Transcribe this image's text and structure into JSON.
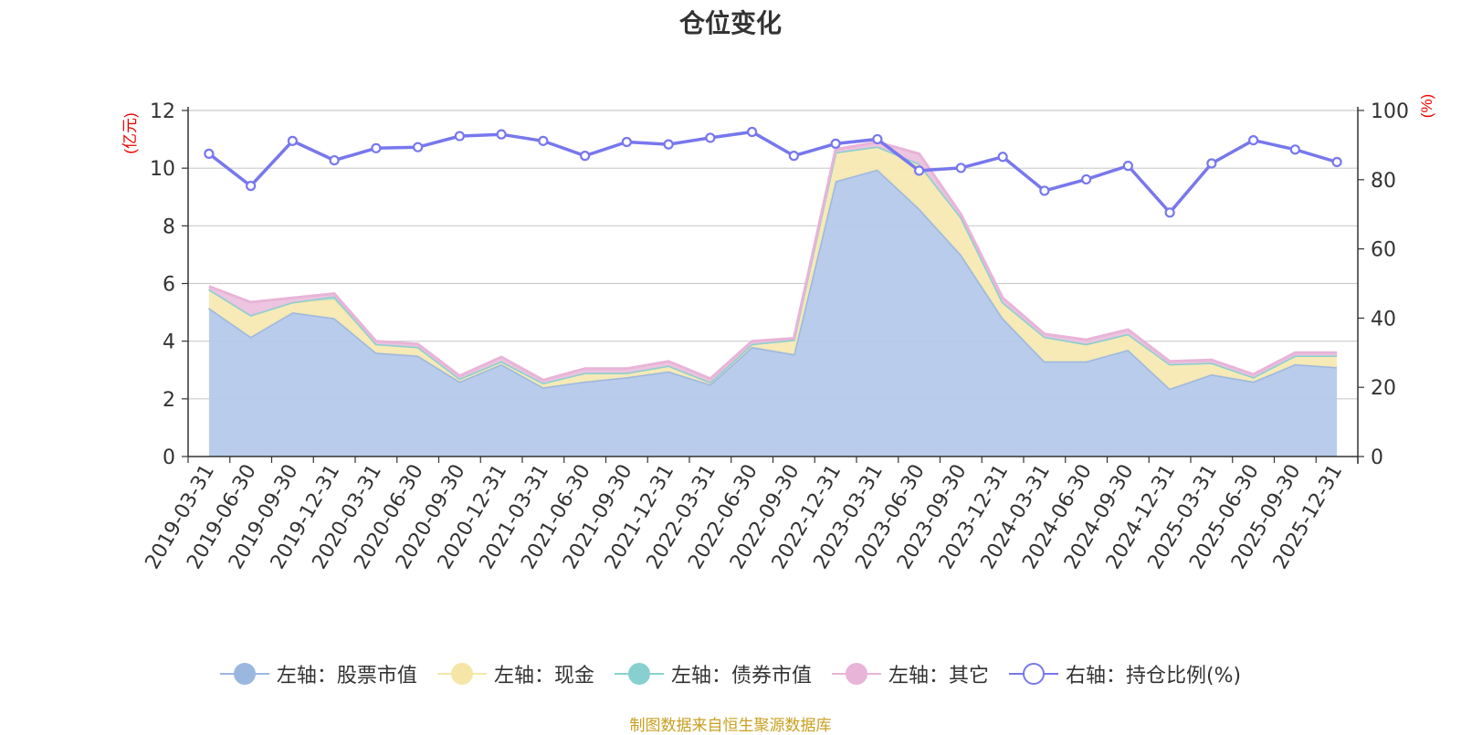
{
  "chart_data": {
    "type": "area",
    "title": "仓位变化",
    "y_left_label": "(亿元)",
    "y_right_label": "(%)",
    "y_left_range": [
      0,
      12
    ],
    "y_left_ticks": [
      0,
      2,
      4,
      6,
      8,
      10,
      12
    ],
    "y_right_range": [
      0,
      100
    ],
    "y_right_ticks": [
      0,
      20,
      40,
      60,
      80,
      100
    ],
    "categories": [
      "2019-03-31",
      "2019-06-30",
      "2019-09-30",
      "2019-12-31",
      "2020-03-31",
      "2020-06-30",
      "2020-09-30",
      "2020-12-31",
      "2021-03-31",
      "2021-06-30",
      "2021-09-30",
      "2021-12-31",
      "2022-03-31",
      "2022-06-30",
      "2022-09-30",
      "2022-12-31",
      "2023-03-31",
      "2023-06-30",
      "2023-09-30",
      "2023-12-31",
      "2024-03-31",
      "2024-06-30",
      "2024-09-30",
      "2024-12-31",
      "2025-03-31",
      "2025-06-30",
      "2025-09-30",
      "2025-12-31"
    ],
    "series": [
      {
        "name": "左轴：股票市值",
        "axis": "left",
        "color": "#9bb7e0",
        "fill": "#b5c9ea",
        "values": [
          5.15,
          4.15,
          5.0,
          4.8,
          3.6,
          3.5,
          2.6,
          3.2,
          2.4,
          2.6,
          2.75,
          2.95,
          2.5,
          3.8,
          3.55,
          9.55,
          9.95,
          8.6,
          7.0,
          4.8,
          3.3,
          3.3,
          3.7,
          2.35,
          2.85,
          2.6,
          3.2,
          3.1
        ]
      },
      {
        "name": "左轴：现金",
        "axis": "left",
        "color": "#f5e6a8",
        "fill": "#f7e9b3",
        "values": [
          0.65,
          0.75,
          0.35,
          0.65,
          0.3,
          0.3,
          0.1,
          0.1,
          0.15,
          0.3,
          0.15,
          0.2,
          0.08,
          0.1,
          0.5,
          1.0,
          0.8,
          1.55,
          1.3,
          0.55,
          0.85,
          0.6,
          0.55,
          0.85,
          0.4,
          0.15,
          0.3,
          0.4
        ]
      },
      {
        "name": "左轴：债券市值",
        "axis": "left",
        "color": "#88d0d0",
        "fill": "#a6dbdb",
        "values": [
          0,
          0,
          0,
          0.1,
          0,
          0,
          0,
          0,
          0,
          0,
          0,
          0,
          0,
          0,
          0,
          0,
          0,
          0,
          0,
          0,
          0,
          0,
          0,
          0,
          0,
          0,
          0,
          0
        ]
      },
      {
        "name": "左轴：其它",
        "axis": "left",
        "color": "#e8b4d8",
        "fill": "#ecc2de",
        "values": [
          0.1,
          0.45,
          0.15,
          0.1,
          0.1,
          0.1,
          0.1,
          0.15,
          0.1,
          0.15,
          0.15,
          0.15,
          0.12,
          0.1,
          0.05,
          0.1,
          0.15,
          0.35,
          0.1,
          0.15,
          0.1,
          0.15,
          0.15,
          0.1,
          0.1,
          0.1,
          0.1,
          0.1
        ]
      },
      {
        "name": "右轴：持仓比例(%)",
        "axis": "right",
        "color": "#7777ee",
        "values": [
          87.5,
          78.2,
          91.2,
          85.6,
          89.1,
          89.4,
          92.6,
          93.1,
          91.2,
          86.9,
          90.9,
          90.2,
          92.1,
          93.8,
          86.9,
          90.4,
          91.7,
          82.6,
          83.4,
          86.6,
          76.8,
          80.1,
          84.0,
          70.5,
          84.7,
          91.4,
          88.7,
          85.1
        ]
      }
    ],
    "legend_position": "bottom",
    "grid": true,
    "source": "制图数据来自恒生聚源数据库"
  }
}
